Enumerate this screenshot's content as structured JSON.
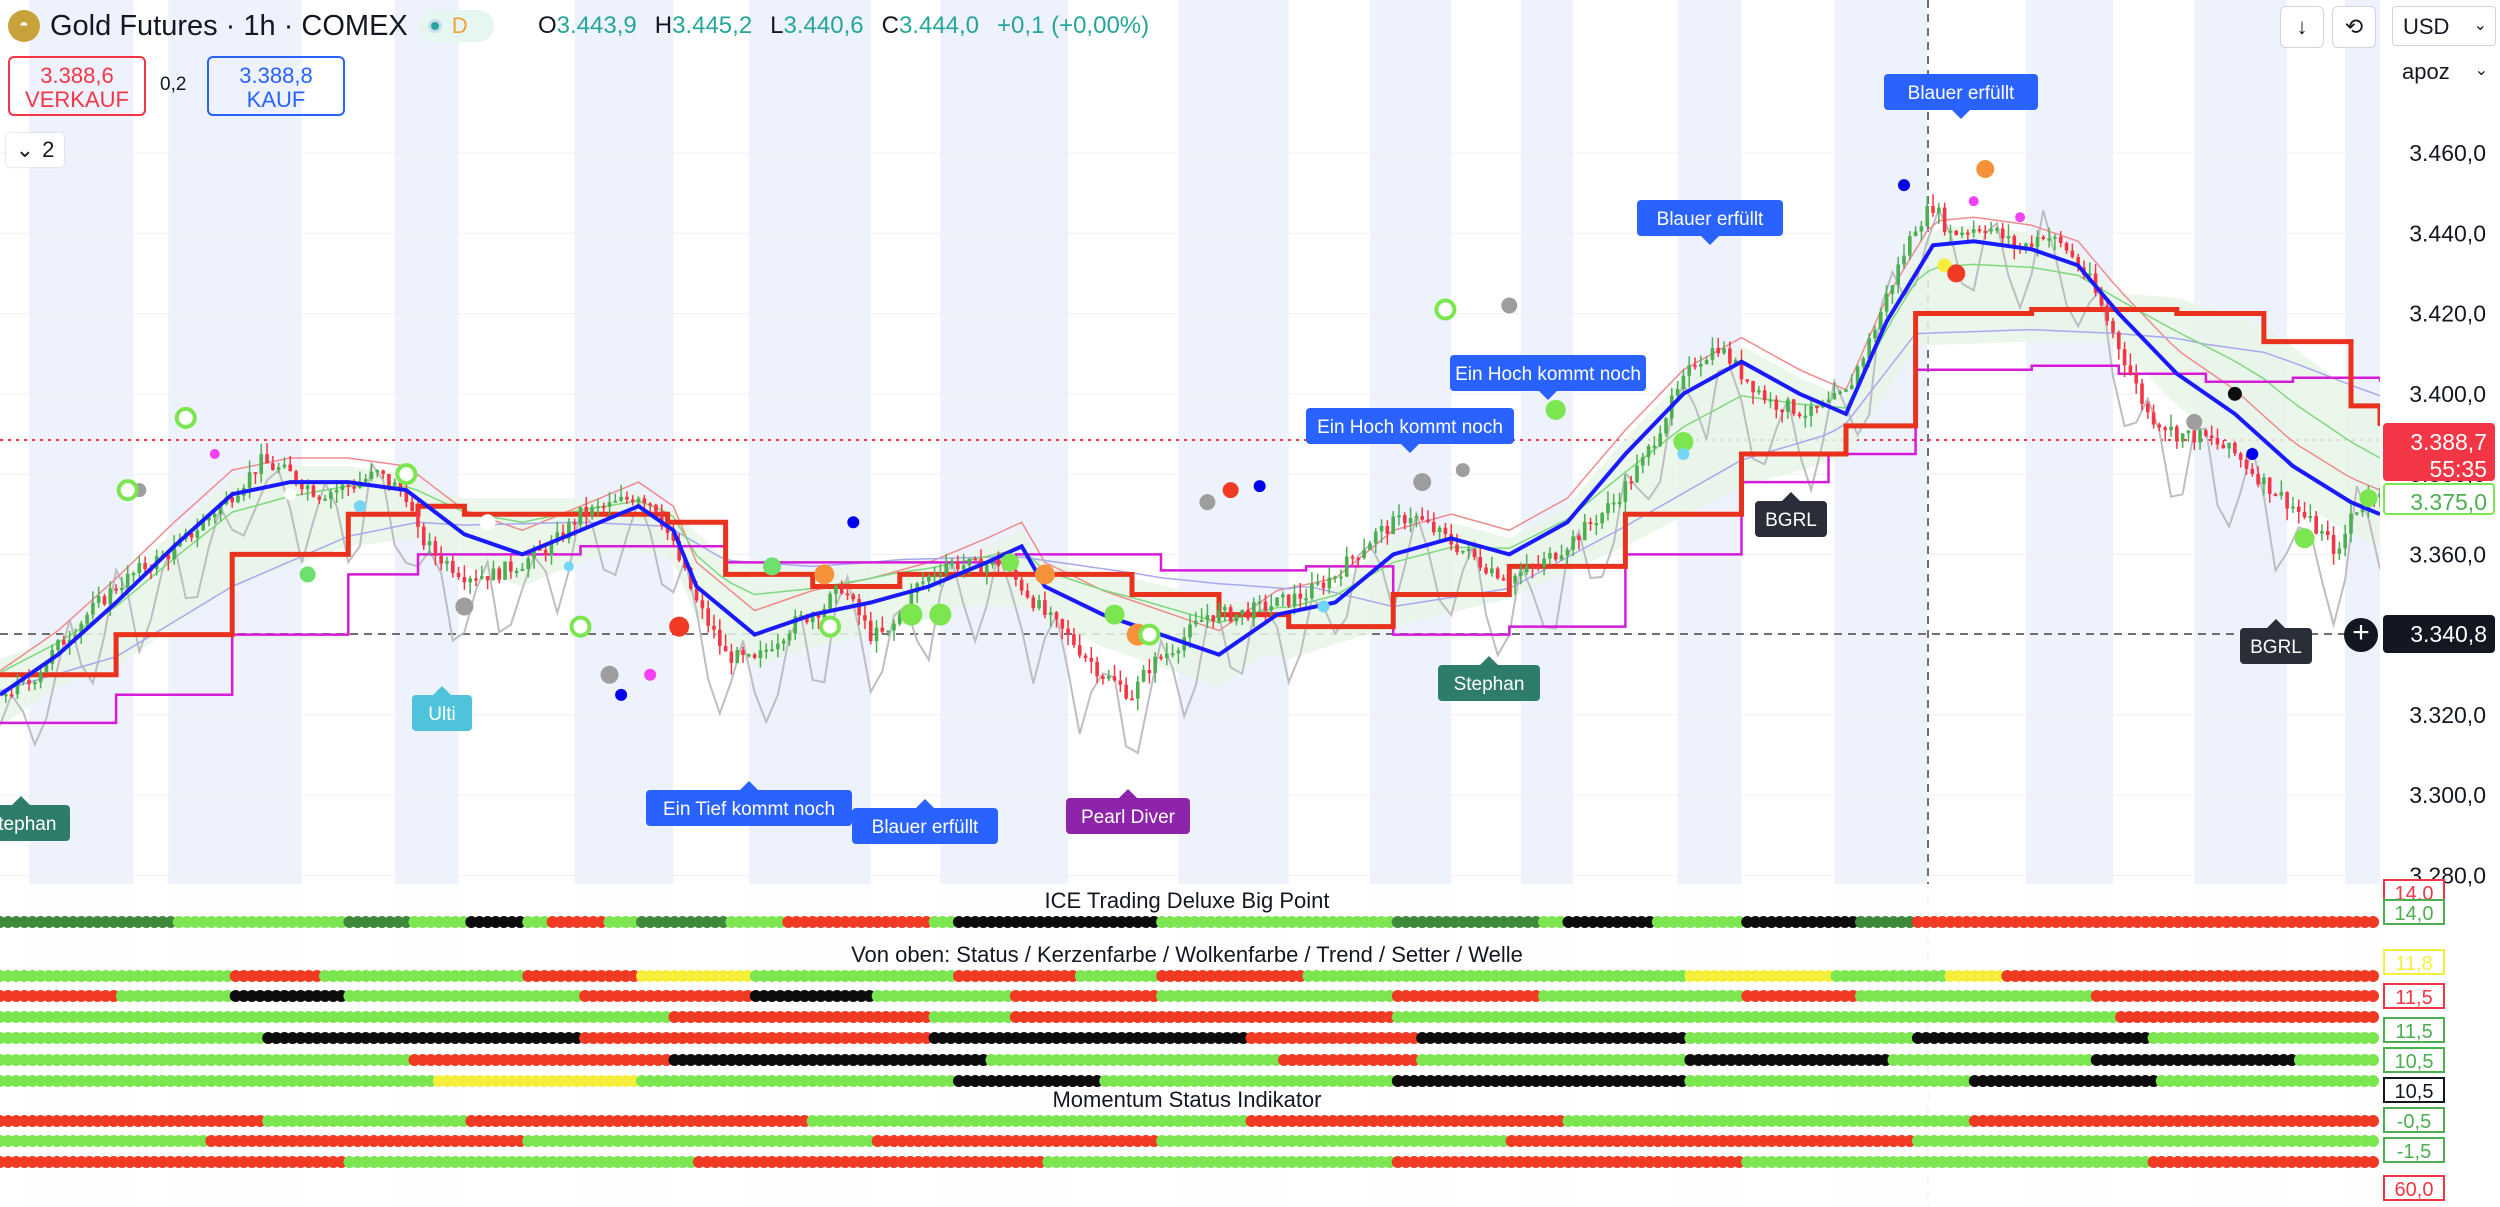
{
  "header": {
    "symbol_title": "Gold Futures · 1h · COMEX",
    "market_status": "D",
    "ohlc": {
      "o_label": "O",
      "o": "3.443,9",
      "h_label": "H",
      "h": "3.445,2",
      "l_label": "L",
      "l": "3.440,6",
      "c_label": "C",
      "c": "3.444,0",
      "change": "+0,1 (+0,00%)"
    }
  },
  "trade": {
    "sell_price": "3.388,6",
    "sell_label": "VERKAUF",
    "spread": "0,2",
    "buy_price": "3.388,8",
    "buy_label": "KAUF"
  },
  "indicators_toggle": {
    "count": "2"
  },
  "toolbar": {
    "download_icon": "arrow-down-icon",
    "replay_icon": "loop-icon",
    "currency": "USD",
    "unit": "apoz"
  },
  "price_scale": {
    "ticks": [
      "3.460,0",
      "3.440,0",
      "3.420,0",
      "3.400,0",
      "3.380,0",
      "3.360,0",
      "3.340,0",
      "3.320,0",
      "3.300,0",
      "3.280,0"
    ],
    "current_price_label": "3.388,7",
    "countdown": "55:35",
    "ma_label": "3.375,0",
    "crosshair_label": "3.340,8"
  },
  "annotations": [
    {
      "text": "Blauer erfüllt",
      "style": "blue"
    },
    {
      "text": "Blauer erfüllt",
      "style": "blue"
    },
    {
      "text": "Ein Hoch kommt noch",
      "style": "blue"
    },
    {
      "text": "Ein Hoch kommt noch",
      "style": "blue"
    },
    {
      "text": "BGRL",
      "style": "dark"
    },
    {
      "text": "BGRL",
      "style": "dark"
    },
    {
      "text": "Ulti",
      "style": "cyan"
    },
    {
      "text": "Stephan",
      "style": "teal"
    },
    {
      "text": "Stephan",
      "style": "teal"
    },
    {
      "text": "Ein Tief kommt noch",
      "style": "blue"
    },
    {
      "text": "Blauer erfüllt",
      "style": "blue"
    },
    {
      "text": "Pearl Diver",
      "style": "purple"
    }
  ],
  "panes": {
    "big_point": {
      "title": "ICE Trading Deluxe Big Point",
      "labels": [
        "14,0",
        "14,0"
      ]
    },
    "status": {
      "title": "Von oben: Status / Kerzenfarbe / Wolkenfarbe / Trend / Setter / Welle",
      "labels": [
        "11,8",
        "11,5",
        "11,5",
        "10,5",
        "10,5"
      ]
    },
    "momentum": {
      "title": "Momentum Status Indikator",
      "labels": [
        "-0,5",
        "-1,5"
      ]
    },
    "bottom_label": "60,0"
  },
  "colors": {
    "up": "#4caf50",
    "down": "#f23645",
    "blue_line": "#1a1aff",
    "red_line": "#e8321e",
    "magenta_line": "#d81bd8",
    "band": "#e9f6e9",
    "session": "#eef2fd",
    "dot_green": "#7be650",
    "dot_red": "#f03a24",
    "dot_black": "#0d0d0d",
    "dot_yellow": "#f5ef3c",
    "dot_darkgreen": "#3f8a3a"
  },
  "chart_data": {
    "type": "candlestick",
    "symbol": "Gold Futures",
    "interval": "1h",
    "ylim": [
      3280,
      3470
    ],
    "ticks": [
      3460,
      3440,
      3420,
      3400,
      3380,
      3360,
      3340,
      3320,
      3300,
      3280
    ],
    "current_price": 3388.7,
    "crosshair_price": 3340.8,
    "close_path": [
      [
        0,
        3325
      ],
      [
        5,
        3328
      ],
      [
        10,
        3337
      ],
      [
        15,
        3345
      ],
      [
        20,
        3352
      ],
      [
        25,
        3357
      ],
      [
        30,
        3361
      ],
      [
        35,
        3368
      ],
      [
        40,
        3375
      ],
      [
        45,
        3383
      ],
      [
        50,
        3380
      ],
      [
        55,
        3375
      ],
      [
        60,
        3377
      ],
      [
        65,
        3380
      ],
      [
        70,
        3375
      ],
      [
        72,
        3365
      ],
      [
        75,
        3360
      ],
      [
        80,
        3355
      ],
      [
        85,
        3355
      ],
      [
        90,
        3358
      ],
      [
        95,
        3362
      ],
      [
        100,
        3370
      ],
      [
        105,
        3372
      ],
      [
        110,
        3375
      ],
      [
        113,
        3372
      ],
      [
        116,
        3362
      ],
      [
        120,
        3348
      ],
      [
        125,
        3335
      ],
      [
        130,
        3333
      ],
      [
        133,
        3338
      ],
      [
        137,
        3343
      ],
      [
        142,
        3347
      ],
      [
        145,
        3352
      ],
      [
        150,
        3340
      ],
      [
        153,
        3340
      ],
      [
        158,
        3352
      ],
      [
        163,
        3358
      ],
      [
        168,
        3357
      ],
      [
        172,
        3358
      ],
      [
        176,
        3352
      ],
      [
        180,
        3345
      ],
      [
        185,
        3338
      ],
      [
        190,
        3330
      ],
      [
        195,
        3325
      ],
      [
        198,
        3332
      ],
      [
        203,
        3338
      ],
      [
        208,
        3345
      ],
      [
        213,
        3345
      ],
      [
        218,
        3347
      ],
      [
        225,
        3350
      ],
      [
        230,
        3355
      ],
      [
        237,
        3365
      ],
      [
        243,
        3370
      ],
      [
        248,
        3365
      ],
      [
        255,
        3358
      ],
      [
        260,
        3354
      ],
      [
        265,
        3357
      ],
      [
        272,
        3365
      ],
      [
        278,
        3373
      ],
      [
        283,
        3383
      ],
      [
        287,
        3395
      ],
      [
        292,
        3408
      ],
      [
        296,
        3412
      ],
      [
        300,
        3405
      ],
      [
        305,
        3398
      ],
      [
        312,
        3395
      ],
      [
        318,
        3400
      ],
      [
        322,
        3413
      ],
      [
        326,
        3428
      ],
      [
        330,
        3442
      ],
      [
        333,
        3447
      ],
      [
        336,
        3440
      ],
      [
        342,
        3442
      ],
      [
        348,
        3436
      ],
      [
        352,
        3440
      ],
      [
        356,
        3436
      ],
      [
        360,
        3428
      ],
      [
        365,
        3412
      ],
      [
        370,
        3395
      ],
      [
        375,
        3390
      ],
      [
        380,
        3389
      ],
      [
        385,
        3385
      ],
      [
        390,
        3378
      ],
      [
        395,
        3372
      ],
      [
        400,
        3365
      ],
      [
        403,
        3360
      ],
      [
        405,
        3370
      ],
      [
        410,
        3377
      ]
    ],
    "blue_line": [
      [
        0,
        3325
      ],
      [
        10,
        3335
      ],
      [
        20,
        3348
      ],
      [
        30,
        3362
      ],
      [
        40,
        3375
      ],
      [
        50,
        3378
      ],
      [
        60,
        3378
      ],
      [
        70,
        3376
      ],
      [
        80,
        3365
      ],
      [
        90,
        3360
      ],
      [
        100,
        3366
      ],
      [
        110,
        3372
      ],
      [
        116,
        3366
      ],
      [
        120,
        3352
      ],
      [
        130,
        3340
      ],
      [
        140,
        3345
      ],
      [
        150,
        3348
      ],
      [
        160,
        3352
      ],
      [
        170,
        3358
      ],
      [
        176,
        3362
      ],
      [
        180,
        3352
      ],
      [
        190,
        3345
      ],
      [
        200,
        3340
      ],
      [
        210,
        3335
      ],
      [
        220,
        3345
      ],
      [
        230,
        3348
      ],
      [
        240,
        3360
      ],
      [
        250,
        3364
      ],
      [
        260,
        3360
      ],
      [
        270,
        3368
      ],
      [
        280,
        3385
      ],
      [
        290,
        3400
      ],
      [
        300,
        3408
      ],
      [
        310,
        3400
      ],
      [
        318,
        3395
      ],
      [
        325,
        3418
      ],
      [
        333,
        3437
      ],
      [
        340,
        3438
      ],
      [
        350,
        3436
      ],
      [
        358,
        3432
      ],
      [
        365,
        3420
      ],
      [
        375,
        3405
      ],
      [
        385,
        3395
      ],
      [
        395,
        3382
      ],
      [
        405,
        3373
      ],
      [
        410,
        3370
      ]
    ],
    "red_line": [
      [
        0,
        3330
      ],
      [
        20,
        3340
      ],
      [
        40,
        3360
      ],
      [
        60,
        3370
      ],
      [
        72,
        3372
      ],
      [
        80,
        3370
      ],
      [
        100,
        3370
      ],
      [
        115,
        3368
      ],
      [
        125,
        3355
      ],
      [
        140,
        3352
      ],
      [
        155,
        3355
      ],
      [
        175,
        3355
      ],
      [
        195,
        3350
      ],
      [
        210,
        3345
      ],
      [
        222,
        3342
      ],
      [
        240,
        3350
      ],
      [
        260,
        3357
      ],
      [
        280,
        3370
      ],
      [
        300,
        3385
      ],
      [
        318,
        3392
      ],
      [
        330,
        3420
      ],
      [
        350,
        3421
      ],
      [
        365,
        3421
      ],
      [
        375,
        3420
      ],
      [
        390,
        3413
      ],
      [
        405,
        3397
      ],
      [
        410,
        3392
      ]
    ],
    "magenta_line": [
      [
        0,
        3318
      ],
      [
        20,
        3325
      ],
      [
        40,
        3340
      ],
      [
        60,
        3355
      ],
      [
        72,
        3360
      ],
      [
        100,
        3362
      ],
      [
        115,
        3362
      ],
      [
        125,
        3358
      ],
      [
        150,
        3358
      ],
      [
        175,
        3360
      ],
      [
        200,
        3356
      ],
      [
        225,
        3357
      ],
      [
        240,
        3340
      ],
      [
        260,
        3342
      ],
      [
        280,
        3360
      ],
      [
        300,
        3378
      ],
      [
        315,
        3385
      ],
      [
        330,
        3406
      ],
      [
        350,
        3407
      ],
      [
        365,
        3405
      ],
      [
        380,
        3403
      ],
      [
        395,
        3404
      ],
      [
        410,
        3403
      ]
    ]
  }
}
